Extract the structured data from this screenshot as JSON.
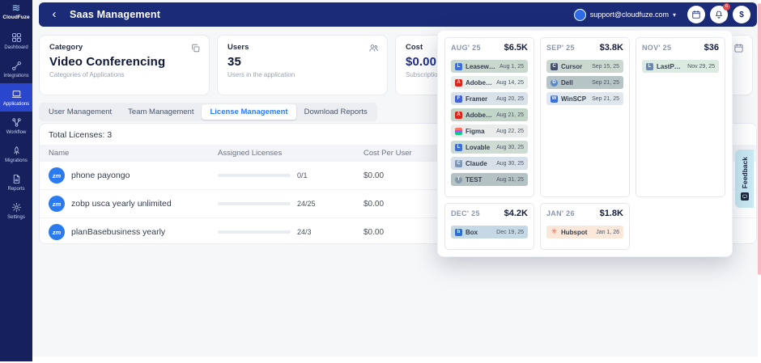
{
  "brand": {
    "name": "CloudFuze"
  },
  "icons": {
    "logo_glyph": "≋",
    "caret": "▾"
  },
  "sidebar": {
    "items": [
      {
        "id": "dashboard",
        "label": "Dashboard",
        "active": false
      },
      {
        "id": "integrations",
        "label": "Integrations",
        "active": false
      },
      {
        "id": "applications",
        "label": "Applications",
        "active": true
      },
      {
        "id": "workflow",
        "label": "Workflow",
        "active": false
      },
      {
        "id": "migrations",
        "label": "Migrations",
        "active": false
      },
      {
        "id": "reports",
        "label": "Reports",
        "active": false
      },
      {
        "id": "settings",
        "label": "Settings",
        "active": false
      }
    ]
  },
  "header": {
    "title": "Saas Management",
    "back_glyph": "‹",
    "user_email": "support@cloudfuze.com",
    "notification_count": "6",
    "currency_button_label": "$"
  },
  "cards": [
    {
      "id": "category",
      "label": "Category",
      "value": "Video Conferencing",
      "sub": "Categories of Applications",
      "icon": "copy"
    },
    {
      "id": "users",
      "label": "Users",
      "value": "35",
      "sub": "Users in the application",
      "icon": "users"
    },
    {
      "id": "cost",
      "label": "Cost",
      "value": "$0.00",
      "sub": "Subscriptio",
      "icon": null
    },
    {
      "id": "renewals",
      "label": "",
      "value": "",
      "sub": "",
      "icon": "calendar"
    }
  ],
  "tabs": {
    "items": [
      "User Management",
      "Team Management",
      "License Management",
      "Download Reports"
    ],
    "active_index": 2
  },
  "table": {
    "total_label": "Total Licenses: 3",
    "headers": [
      "Name",
      "Assigned Licenses",
      "Cost Per User"
    ],
    "rows": [
      {
        "name": "phone payongo",
        "badge": "zm",
        "fraction": "0/1",
        "cost": "$0.00",
        "bar_color": "#2f96f5",
        "bar_pct": 100
      },
      {
        "name": "zobp usca yearly unlimited",
        "badge": "zm",
        "fraction": "24/25",
        "cost": "$0.00",
        "bar_color": "#16277e",
        "bar_pct": 100
      },
      {
        "name": "planBasebusiness yearly",
        "badge": "zm",
        "fraction": "24/3",
        "cost": "$0.00",
        "bar_color": "#16277e",
        "bar_pct": 100
      }
    ]
  },
  "popup": {
    "months": [
      {
        "label": "AUG' 25",
        "total": "$6.5K",
        "entries": [
          {
            "name": "Leaseweb",
            "date": "Aug 1, 25",
            "bg": "#c9d8cf",
            "icon": {
              "bg": "#3e6fd9",
              "label": "L"
            }
          },
          {
            "name": "Adobe Identit...",
            "date": "Aug 14, 25",
            "bg": "#e8eeeb",
            "icon": {
              "bg": "#e2231a",
              "label": "A"
            }
          },
          {
            "name": "Framer",
            "date": "Aug 20, 25",
            "bg": "#d9e1e9",
            "icon": {
              "bg": "#4262d6",
              "label": "F"
            }
          },
          {
            "name": "Adobe Creative",
            "date": "Aug 21, 25",
            "bg": "#c2d5c9",
            "icon": {
              "bg": "#e2231a",
              "label": "A"
            }
          },
          {
            "name": "Figma",
            "date": "Aug 22, 25",
            "bg": "#e9eceb",
            "icon": {
              "style": "figma"
            }
          },
          {
            "name": "Lovable",
            "date": "Aug 30, 25",
            "bg": "#cddbd3",
            "icon": {
              "bg": "#3e6fd9",
              "label": "L"
            }
          },
          {
            "name": "Claude",
            "date": "Aug 30, 25",
            "bg": "#d7e0e9",
            "icon": {
              "bg": "#7d96b5",
              "label": "C"
            }
          },
          {
            "name": "TEST",
            "date": "Aug 31, 25",
            "bg": "#b4c2c4",
            "icon": {
              "bg": "#8399ad",
              "label": "T",
              "shape": "circle"
            }
          }
        ]
      },
      {
        "label": "SEP' 25",
        "total": "$3.8K",
        "entries": [
          {
            "name": "Cursor",
            "date": "Sep 15, 25",
            "bg": "#cad8d0",
            "icon": {
              "bg": "#44506b",
              "label": "C"
            }
          },
          {
            "name": "Dell",
            "date": "Sep 21, 25",
            "bg": "#b7c4c6",
            "icon": {
              "bg": "#5b87c9",
              "label": "D",
              "shape": "circle"
            }
          },
          {
            "name": "WinSCP",
            "date": "Sep 21, 25",
            "bg": "#e0e7ed",
            "icon": {
              "bg": "#3e6fd9",
              "label": "W"
            }
          }
        ]
      },
      {
        "label": "NOV' 25",
        "total": "$36",
        "entries": [
          {
            "name": "LastPass",
            "date": "Nov 29, 25",
            "bg": "#dcebe2",
            "icon": {
              "bg": "#6d87ab",
              "label": "L"
            }
          }
        ]
      },
      {
        "label": "DEC' 25",
        "total": "$4.2K",
        "entries": [
          {
            "name": "Box",
            "date": "Dec 19, 25",
            "bg": "#c5d8e5",
            "icon": {
              "bg": "#2f6fce",
              "label": "b"
            }
          }
        ]
      },
      {
        "label": "JAN' 26",
        "total": "$1.8K",
        "entries": [
          {
            "name": "Hubspot",
            "date": "Jan 1, 26",
            "bg": "#fce7db",
            "icon": {
              "style": "hubspot",
              "label": "✳"
            }
          }
        ]
      }
    ]
  },
  "feedback": {
    "label": "Feedback"
  },
  "colors": {
    "accent_blue": "#2d7df6",
    "sidebar_navy": "#15205d",
    "active_nav": "#2a46cc",
    "topbar_navy": "#1b2b77",
    "bar_light_blue": "#2f96f5",
    "bar_navy": "#16277e",
    "zoom_badge_blue": "#2b7bf0",
    "hubspot_orange": "#ff5c35",
    "feedback_cyan": "#c9e9f4"
  }
}
